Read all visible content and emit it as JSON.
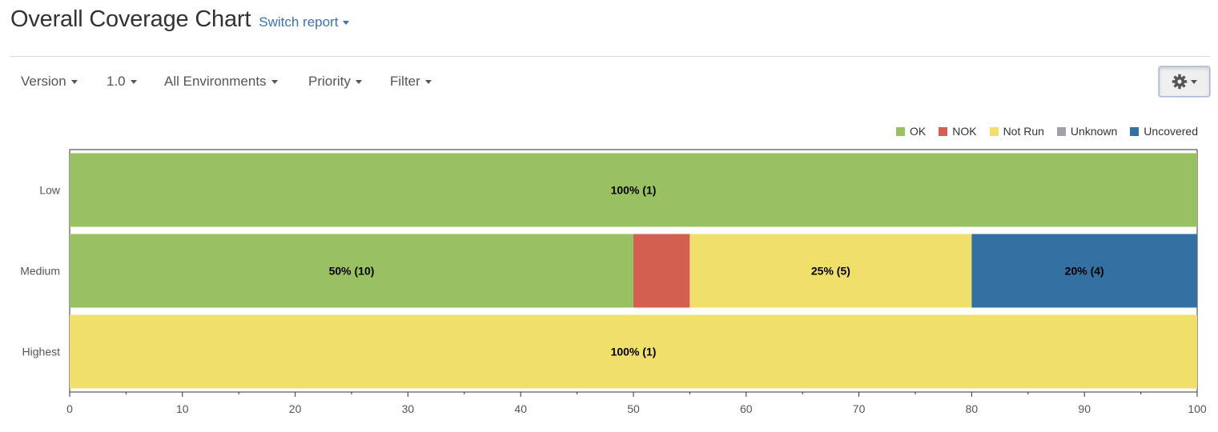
{
  "header": {
    "title": "Overall Coverage Chart",
    "switch_report": "Switch report"
  },
  "toolbar": {
    "filters": [
      {
        "label": "Version"
      },
      {
        "label": "1.0"
      },
      {
        "label": "All Environments"
      },
      {
        "label": "Priority"
      },
      {
        "label": "Filter"
      }
    ],
    "settings_icon": "gear-icon"
  },
  "legend": [
    {
      "name": "OK",
      "color": "#99c162"
    },
    {
      "name": "NOK",
      "color": "#d35f51"
    },
    {
      "name": "Not Run",
      "color": "#f1df6b"
    },
    {
      "name": "Unknown",
      "color": "#9da3a8"
    },
    {
      "name": "Uncovered",
      "color": "#3570a3"
    }
  ],
  "chart_data": {
    "type": "bar",
    "orientation": "horizontal",
    "stacked": true,
    "categories": [
      "Low",
      "Medium",
      "Highest"
    ],
    "series": [
      {
        "name": "OK",
        "color": "#99c162",
        "values": [
          100,
          50,
          0
        ],
        "labels": [
          "100% (1)",
          "50% (10)",
          ""
        ]
      },
      {
        "name": "NOK",
        "color": "#d35f51",
        "values": [
          0,
          5,
          0
        ],
        "labels": [
          "",
          "",
          ""
        ]
      },
      {
        "name": "Not Run",
        "color": "#f1df6b",
        "values": [
          0,
          25,
          100
        ],
        "labels": [
          "",
          "25% (5)",
          "100% (1)"
        ]
      },
      {
        "name": "Unknown",
        "color": "#9da3a8",
        "values": [
          0,
          0,
          0
        ],
        "labels": [
          "",
          "",
          ""
        ]
      },
      {
        "name": "Uncovered",
        "color": "#3570a3",
        "values": [
          0,
          20,
          0
        ],
        "labels": [
          "",
          "20% (4)",
          ""
        ]
      }
    ],
    "xlim": [
      0,
      100
    ],
    "xticks": [
      0,
      10,
      20,
      30,
      40,
      50,
      60,
      70,
      80,
      90,
      100
    ],
    "xticks_minor": [
      5,
      15,
      25,
      35,
      45,
      55,
      65,
      75,
      85,
      95
    ],
    "legend_position": "top-right",
    "grid": false
  }
}
